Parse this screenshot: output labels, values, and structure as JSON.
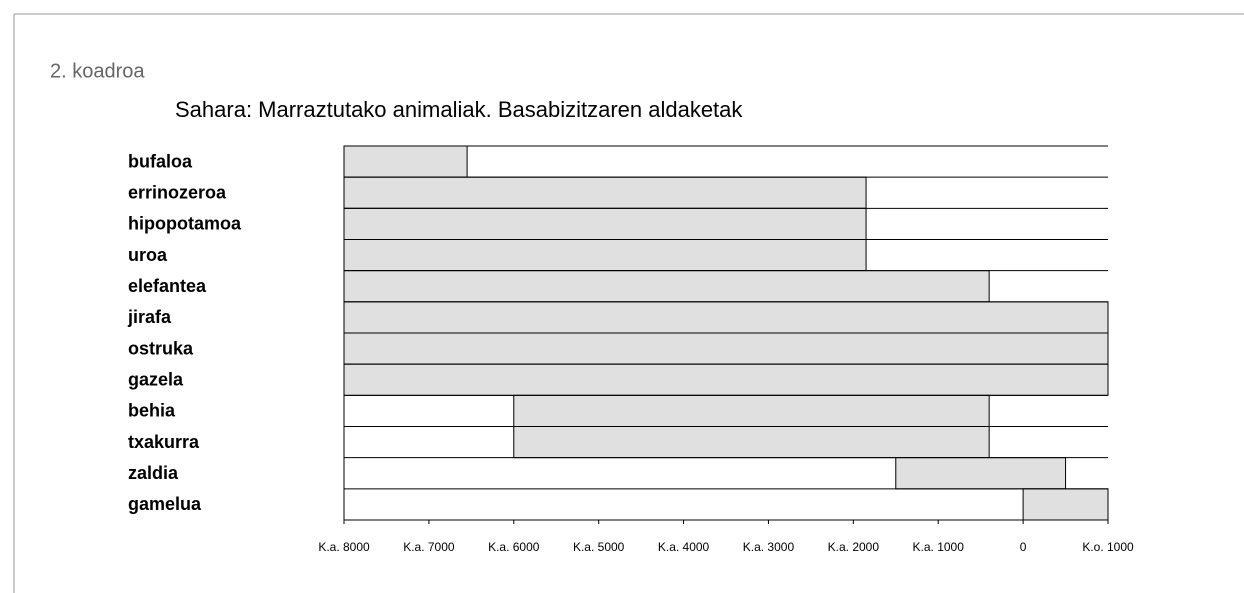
{
  "header": {
    "title": "2. koadroa"
  },
  "chart_data": {
    "type": "range",
    "title": "Sahara: Marraztutako animaliak. Basabizitzaren aldaketak",
    "categories": [
      "bufaloa",
      "errinozeroa",
      "hipopotamoa",
      "uroa",
      "elefantea",
      "jirafa",
      "ostruka",
      "gazela",
      "behia",
      "txakurra",
      "zaldia",
      "gamelua"
    ],
    "starts": [
      -8000,
      -8000,
      -8000,
      -8000,
      -8000,
      -8000,
      -8000,
      -8000,
      -6000,
      -6000,
      -1500,
      0
    ],
    "ends": [
      -6550,
      -1850,
      -1850,
      -1850,
      -400,
      1000,
      1000,
      1000,
      -400,
      -400,
      500,
      1000
    ],
    "color": "#e0e0e0",
    "xlim": [
      -8000,
      1000
    ],
    "xticks": [
      {
        "value": -8000,
        "label": "K.a. 8000"
      },
      {
        "value": -7000,
        "label": "K.a. 7000"
      },
      {
        "value": -6000,
        "label": "K.a. 6000"
      },
      {
        "value": -5000,
        "label": "K.a. 5000"
      },
      {
        "value": -4000,
        "label": "K.a. 4000"
      },
      {
        "value": -3000,
        "label": "K.a. 3000"
      },
      {
        "value": -2000,
        "label": "K.a. 2000"
      },
      {
        "value": -1000,
        "label": "K.a. 1000"
      },
      0,
      {
        "value": 1000,
        "label": "K.o. 1000"
      }
    ]
  }
}
